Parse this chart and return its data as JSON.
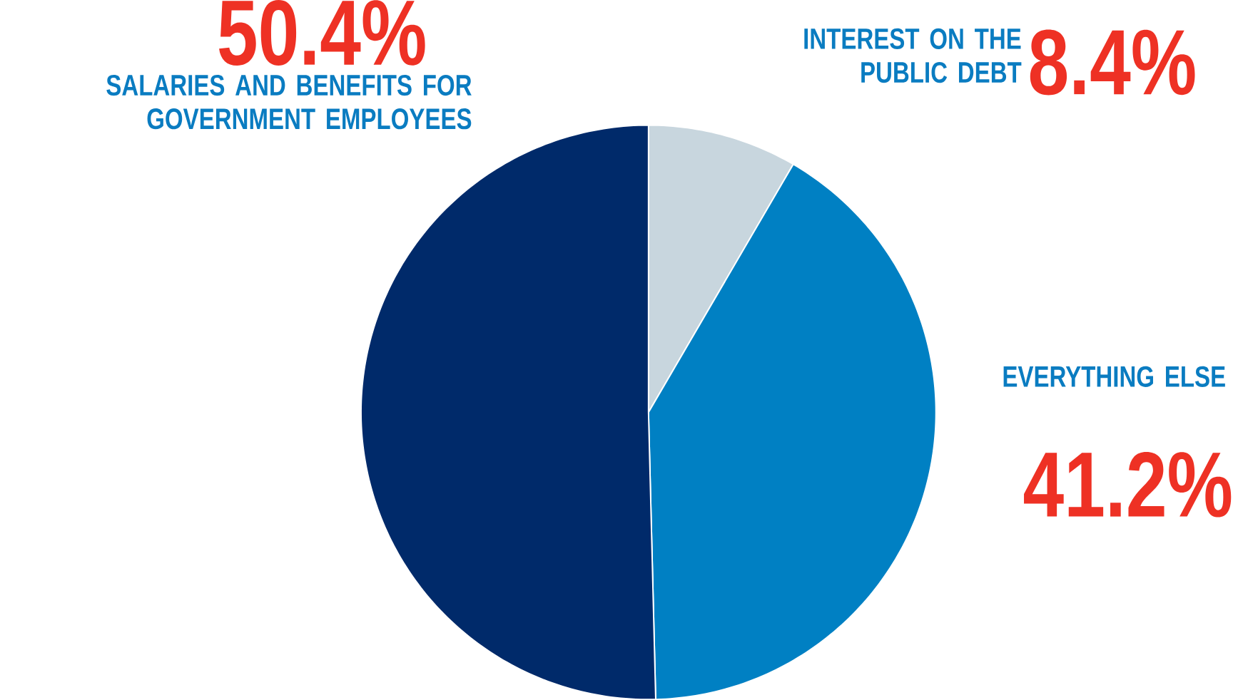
{
  "chart_data": {
    "type": "pie",
    "categories": [
      "INTEREST ON THE PUBLIC DEBT",
      "EVERYTHING ELSE",
      "SALARIES AND BENEFITS FOR GOVERNMENT EMPLOYEES"
    ],
    "values": [
      8.4,
      41.2,
      50.4
    ],
    "colors": [
      "#c8d6de",
      "#0080c3",
      "#002a6a"
    ],
    "value_labels": [
      "8.4%",
      "41.2%",
      "50.4%"
    ]
  }
}
